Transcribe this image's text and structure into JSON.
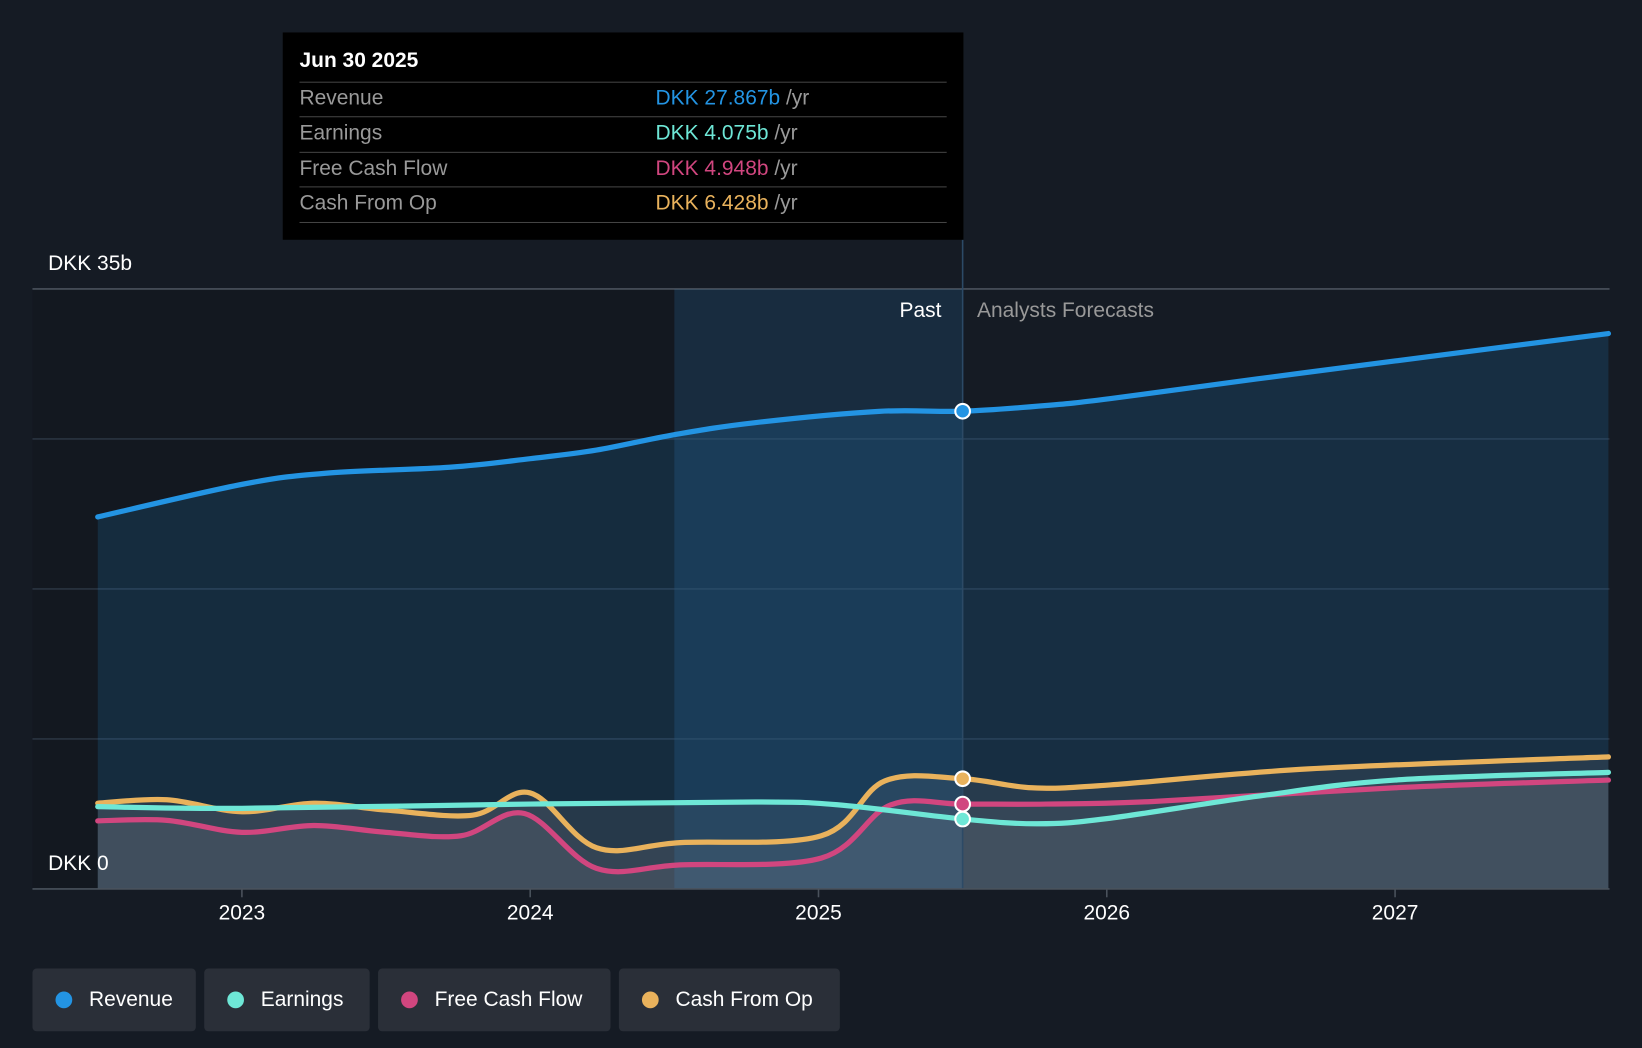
{
  "chart_data": {
    "type": "line",
    "currency": "DKK",
    "y_axis": {
      "top_label": "DKK 35b",
      "bottom_label": "DKK 0",
      "ylim": [
        0,
        35
      ]
    },
    "x_axis": {
      "ticks": [
        "2023",
        "2024",
        "2025",
        "2026",
        "2027"
      ],
      "xlim": [
        2022.5,
        2027.75
      ]
    },
    "regions": {
      "past_label": "Past",
      "forecast_label": "Analysts Forecasts",
      "divider_year": 2025.5,
      "highlight_start": 2024.5
    },
    "colors": {
      "Revenue": "#2394e3",
      "Earnings": "#6ee7d6",
      "Free Cash Flow": "#d1467f",
      "Cash From Op": "#e9b25c"
    },
    "series": [
      {
        "name": "Revenue",
        "points": [
          [
            2022.5,
            21.7
          ],
          [
            2023,
            23.6
          ],
          [
            2023.29,
            24.25
          ],
          [
            2023.72,
            24.6
          ],
          [
            2024,
            25.1
          ],
          [
            2024.23,
            25.6
          ],
          [
            2024.5,
            26.5
          ],
          [
            2024.78,
            27.2
          ],
          [
            2025.21,
            27.86
          ],
          [
            2025.5,
            27.867
          ],
          [
            2025.79,
            28.2
          ],
          [
            2026.01,
            28.6
          ],
          [
            2026.52,
            29.75
          ],
          [
            2027,
            30.8
          ],
          [
            2027.74,
            32.4
          ]
        ]
      },
      {
        "name": "Earnings",
        "points": [
          [
            2022.5,
            4.8
          ],
          [
            2023,
            4.7
          ],
          [
            2024,
            4.95
          ],
          [
            2024.78,
            5.07
          ],
          [
            2025.07,
            4.9
          ],
          [
            2025.5,
            4.075
          ],
          [
            2025.76,
            3.8
          ],
          [
            2026,
            4.1
          ],
          [
            2026.52,
            5.4
          ],
          [
            2027,
            6.35
          ],
          [
            2027.74,
            6.8
          ]
        ]
      },
      {
        "name": "Free Cash Flow",
        "points": [
          [
            2022.5,
            3.97
          ],
          [
            2022.74,
            4.0
          ],
          [
            2023,
            3.3
          ],
          [
            2023.25,
            3.7
          ],
          [
            2023.5,
            3.3
          ],
          [
            2023.76,
            3.1
          ],
          [
            2023.98,
            4.4
          ],
          [
            2024.23,
            1.2
          ],
          [
            2024.52,
            1.4
          ],
          [
            2025.01,
            1.8
          ],
          [
            2025.25,
            4.9
          ],
          [
            2025.5,
            4.948
          ],
          [
            2025.79,
            4.95
          ],
          [
            2026.16,
            5.1
          ],
          [
            2027,
            5.9
          ],
          [
            2027.74,
            6.35
          ]
        ]
      },
      {
        "name": "Cash From Op",
        "points": [
          [
            2022.5,
            5.0
          ],
          [
            2022.74,
            5.2
          ],
          [
            2023,
            4.5
          ],
          [
            2023.25,
            5.0
          ],
          [
            2023.5,
            4.6
          ],
          [
            2023.8,
            4.3
          ],
          [
            2024,
            5.6
          ],
          [
            2024.23,
            2.4
          ],
          [
            2024.52,
            2.7
          ],
          [
            2025.01,
            3.1
          ],
          [
            2025.23,
            6.3
          ],
          [
            2025.5,
            6.428
          ],
          [
            2025.74,
            5.9
          ],
          [
            2026,
            6.05
          ],
          [
            2026.7,
            7.0
          ],
          [
            2027.74,
            7.7
          ]
        ]
      }
    ]
  },
  "tooltip": {
    "date": "Jun 30 2025",
    "rows": [
      {
        "label": "Revenue",
        "value": "DKK 27.867b",
        "unit": "/yr",
        "color": "#2394e3"
      },
      {
        "label": "Earnings",
        "value": "DKK 4.075b",
        "unit": "/yr",
        "color": "#6ee7d6"
      },
      {
        "label": "Free Cash Flow",
        "value": "DKK 4.948b",
        "unit": "/yr",
        "color": "#d1467f"
      },
      {
        "label": "Cash From Op",
        "value": "DKK 6.428b",
        "unit": "/yr",
        "color": "#e9b25c"
      }
    ]
  },
  "legend": [
    "Revenue",
    "Earnings",
    "Free Cash Flow",
    "Cash From Op"
  ]
}
